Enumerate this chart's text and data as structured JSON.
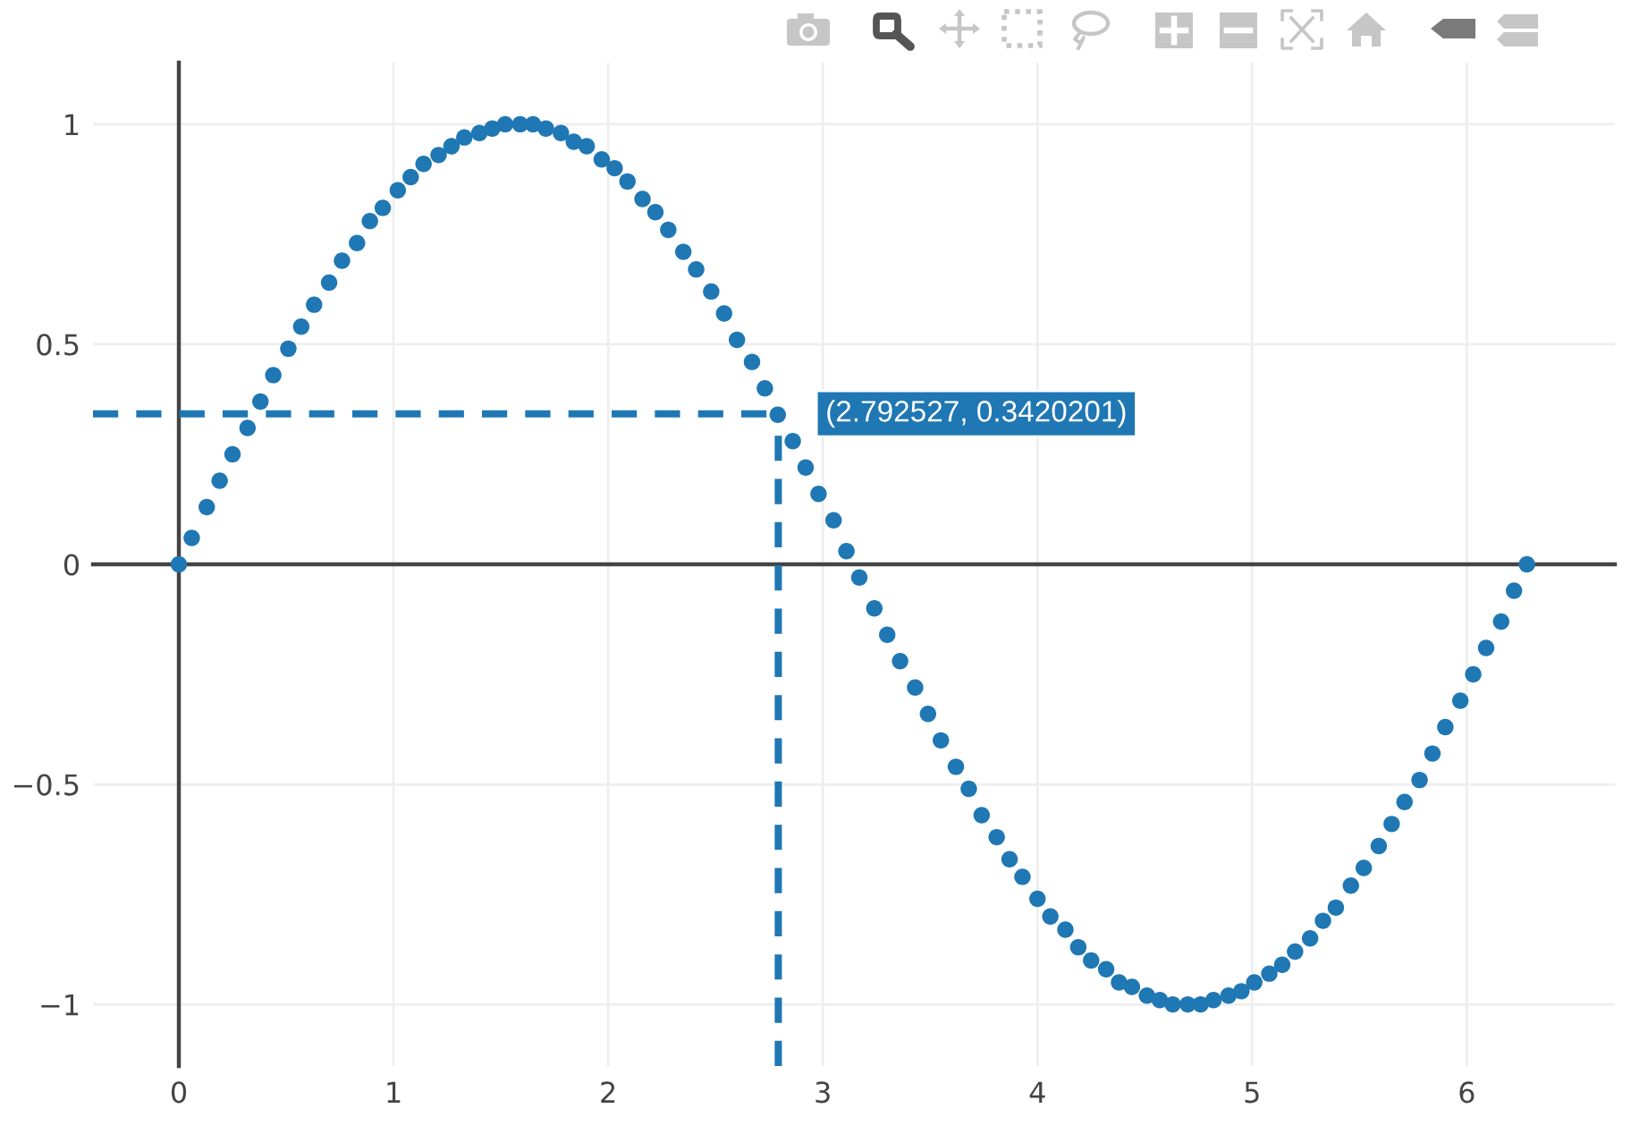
{
  "chart_data": {
    "type": "scatter",
    "x": [
      0,
      0.06,
      0.13,
      0.19,
      0.25,
      0.32,
      0.38,
      0.44,
      0.51,
      0.57,
      0.63,
      0.7,
      0.76,
      0.83,
      0.89,
      0.95,
      1.02,
      1.08,
      1.14,
      1.21,
      1.27,
      1.33,
      1.4,
      1.46,
      1.52,
      1.59,
      1.65,
      1.71,
      1.78,
      1.84,
      1.9,
      1.97,
      2.03,
      2.09,
      2.16,
      2.22,
      2.28,
      2.35,
      2.41,
      2.48,
      2.54,
      2.6,
      2.67,
      2.73,
      2.79,
      2.86,
      2.92,
      2.98,
      3.05,
      3.11,
      3.17,
      3.24,
      3.3,
      3.36,
      3.43,
      3.49,
      3.55,
      3.62,
      3.68,
      3.74,
      3.81,
      3.87,
      3.93,
      4.0,
      4.06,
      4.13,
      4.19,
      4.25,
      4.32,
      4.38,
      4.44,
      4.51,
      4.57,
      4.63,
      4.7,
      4.76,
      4.82,
      4.89,
      4.95,
      5.01,
      5.08,
      5.14,
      5.2,
      5.27,
      5.33,
      5.39,
      5.46,
      5.52,
      5.59,
      5.65,
      5.71,
      5.78,
      5.84,
      5.9,
      5.97,
      6.03,
      6.09,
      6.16,
      6.22,
      6.28
    ],
    "values": [
      0,
      0.06,
      0.13,
      0.19,
      0.25,
      0.31,
      0.37,
      0.43,
      0.49,
      0.54,
      0.59,
      0.64,
      0.69,
      0.73,
      0.78,
      0.81,
      0.85,
      0.88,
      0.91,
      0.93,
      0.95,
      0.97,
      0.98,
      0.99,
      1.0,
      1.0,
      1.0,
      0.99,
      0.98,
      0.96,
      0.95,
      0.92,
      0.9,
      0.87,
      0.83,
      0.8,
      0.76,
      0.71,
      0.67,
      0.62,
      0.57,
      0.51,
      0.46,
      0.4,
      0.34,
      0.28,
      0.22,
      0.16,
      0.1,
      0.03,
      -0.03,
      -0.1,
      -0.16,
      -0.22,
      -0.28,
      -0.34,
      -0.4,
      -0.46,
      -0.51,
      -0.57,
      -0.62,
      -0.67,
      -0.71,
      -0.76,
      -0.8,
      -0.83,
      -0.87,
      -0.9,
      -0.92,
      -0.95,
      -0.96,
      -0.98,
      -0.99,
      -1.0,
      -1.0,
      -1.0,
      -0.99,
      -0.98,
      -0.97,
      -0.95,
      -0.93,
      -0.91,
      -0.88,
      -0.85,
      -0.81,
      -0.78,
      -0.73,
      -0.69,
      -0.64,
      -0.59,
      -0.54,
      -0.49,
      -0.43,
      -0.37,
      -0.31,
      -0.25,
      -0.19,
      -0.13,
      -0.06,
      0
    ],
    "color": "#1f77b4",
    "marker": "circle",
    "xlim": [
      -0.4,
      6.69
    ],
    "ylim": [
      -1.14,
      1.14
    ],
    "xticks": [
      0,
      1,
      2,
      3,
      4,
      5,
      6
    ],
    "yticks": [
      {
        "value": -1,
        "label": "−1"
      },
      {
        "value": -0.5,
        "label": "−0.5"
      },
      0,
      0.5,
      1
    ],
    "grid": true,
    "ref_lines": [
      {
        "axis": "x",
        "value": 2.792527,
        "color": "#1f77b4",
        "line_style": "dashed"
      },
      {
        "axis": "y",
        "value": 0.3420201,
        "color": "#1f77b4",
        "line_style": "dashed"
      }
    ],
    "annotations": [
      {
        "text": "(2.792527, 0.3420201)",
        "x": 2.792527,
        "y": 0.3420201
      }
    ]
  }
}
